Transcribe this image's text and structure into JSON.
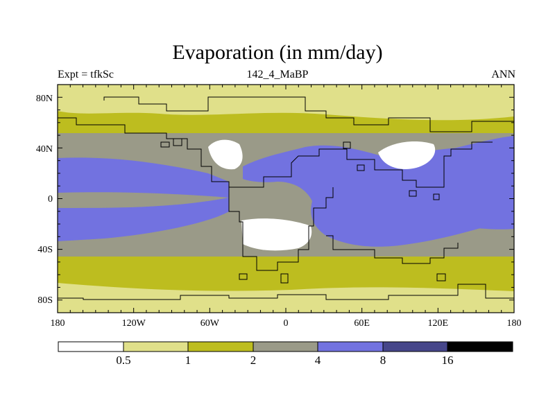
{
  "title": "Evaporation (in mm/day)",
  "left_string": "Expt = tfkSc",
  "center_string": "142_4_MaBP",
  "right_string": "ANN",
  "axes": {
    "x_ticks": [
      "180",
      "120W",
      "60W",
      "0",
      "60E",
      "120E",
      "180"
    ],
    "y_ticks": [
      "80N",
      "40N",
      "0",
      "40S",
      "80S"
    ]
  },
  "colors": {
    "lt05": "#ffffff",
    "b05_1": "#e0e08a",
    "b1_2": "#bdbd1f",
    "b2_4": "#9a9a88",
    "b4_8": "#7272e0",
    "b8_16": "#46468a",
    "gt16": "#000000",
    "coast": "#000000"
  },
  "colorbar": {
    "labels": [
      "0.5",
      "1",
      "2",
      "4",
      "8",
      "16"
    ],
    "bins": [
      "lt05",
      "b05_1",
      "b1_2",
      "b2_4",
      "b4_8",
      "b8_16",
      "gt16"
    ]
  }
}
